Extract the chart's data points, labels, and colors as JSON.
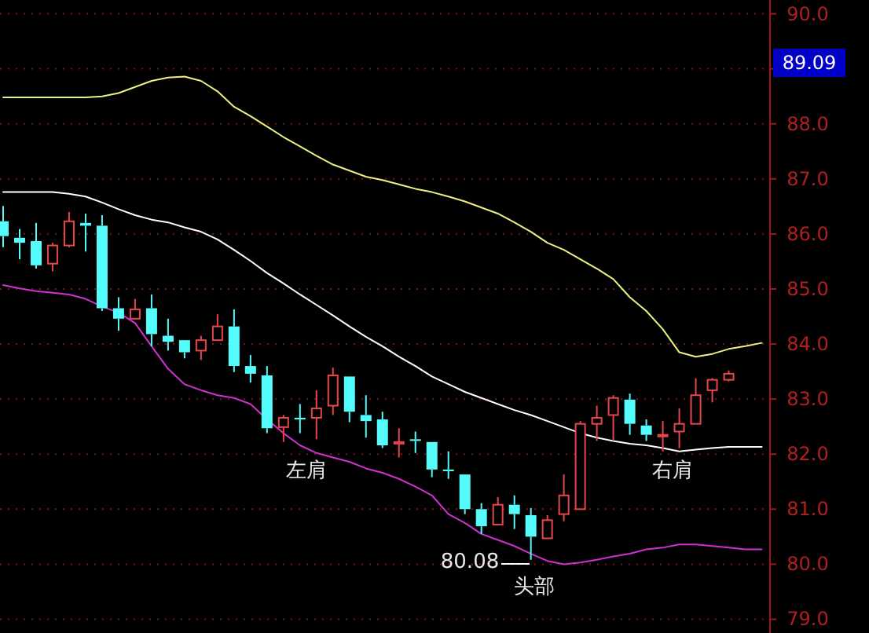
{
  "chart_data": {
    "type": "candlestick",
    "categories": [
      null,
      null,
      null,
      null,
      null,
      null,
      null,
      null,
      null,
      null,
      null,
      null,
      null,
      null,
      null,
      null,
      null,
      null,
      null,
      null,
      null,
      null,
      null,
      null,
      null,
      null,
      null,
      null,
      null,
      null,
      null,
      null,
      null,
      null,
      null,
      null,
      null,
      null,
      null,
      null,
      null,
      null,
      null,
      null,
      null,
      null,
      null
    ],
    "ohlc": [
      [
        86.23,
        86.51,
        85.76,
        85.96
      ],
      [
        85.93,
        86.09,
        85.54,
        85.84
      ],
      [
        85.87,
        86.2,
        85.37,
        85.43
      ],
      [
        85.46,
        85.84,
        85.32,
        85.79
      ],
      [
        85.79,
        86.4,
        85.76,
        86.23
      ],
      [
        86.2,
        86.37,
        85.68,
        86.15
      ],
      [
        86.15,
        86.34,
        84.6,
        84.65
      ],
      [
        84.65,
        84.85,
        84.24,
        84.46
      ],
      [
        84.46,
        84.82,
        84.46,
        84.63
      ],
      [
        84.65,
        84.9,
        83.96,
        84.18
      ],
      [
        84.15,
        84.46,
        83.88,
        84.04
      ],
      [
        84.07,
        84.07,
        83.74,
        83.85
      ],
      [
        83.88,
        84.15,
        83.71,
        84.07
      ],
      [
        84.07,
        84.54,
        84.07,
        84.32
      ],
      [
        84.32,
        84.63,
        83.49,
        83.6
      ],
      [
        83.6,
        83.8,
        83.3,
        83.46
      ],
      [
        83.43,
        83.6,
        82.38,
        82.47
      ],
      [
        82.49,
        82.71,
        82.22,
        82.66
      ],
      [
        82.66,
        82.91,
        82.38,
        82.63
      ],
      [
        82.66,
        83.16,
        82.27,
        82.83
      ],
      [
        82.88,
        83.57,
        82.71,
        83.43
      ],
      [
        83.41,
        83.41,
        82.58,
        82.77
      ],
      [
        82.71,
        83.07,
        82.3,
        82.6
      ],
      [
        82.63,
        82.77,
        82.11,
        82.16
      ],
      [
        82.19,
        82.47,
        81.94,
        82.22
      ],
      [
        82.27,
        82.41,
        82.02,
        82.24
      ],
      [
        82.22,
        82.22,
        81.58,
        81.72
      ],
      [
        81.72,
        82.05,
        81.55,
        81.69
      ],
      [
        81.63,
        81.63,
        80.91,
        81.0
      ],
      [
        81.0,
        81.11,
        80.55,
        80.69
      ],
      [
        80.72,
        81.22,
        80.72,
        81.08
      ],
      [
        81.08,
        81.25,
        80.64,
        80.91
      ],
      [
        80.89,
        81.02,
        80.08,
        80.5
      ],
      [
        80.47,
        80.89,
        80.47,
        80.8
      ],
      [
        80.91,
        81.63,
        80.78,
        81.25
      ],
      [
        81.0,
        82.6,
        81.0,
        82.55
      ],
      [
        82.55,
        82.88,
        82.24,
        82.66
      ],
      [
        82.71,
        83.07,
        82.24,
        83.02
      ],
      [
        82.99,
        83.1,
        82.35,
        82.55
      ],
      [
        82.52,
        82.63,
        82.24,
        82.35
      ],
      [
        82.33,
        82.6,
        82.05,
        82.35
      ],
      [
        82.41,
        82.83,
        82.11,
        82.55
      ],
      [
        82.55,
        83.38,
        82.55,
        83.07
      ],
      [
        83.16,
        83.38,
        82.94,
        83.35
      ],
      [
        83.35,
        83.52,
        83.32,
        83.46
      ],
      null,
      null
    ],
    "colors": [
      "#54fcfc",
      "#54fcfc",
      "#54fcfc",
      "#e8464a",
      "#e8464a",
      "#54fcfc",
      "#54fcfc",
      "#54fcfc",
      "#e8464a",
      "#54fcfc",
      "#54fcfc",
      "#54fcfc",
      "#e8464a",
      "#e8464a",
      "#54fcfc",
      "#54fcfc",
      "#54fcfc",
      "#e8464a",
      "#54fcfc",
      "#e8464a",
      "#e8464a",
      "#54fcfc",
      "#54fcfc",
      "#54fcfc",
      "#e8464a",
      "#54fcfc",
      "#54fcfc",
      "#54fcfc",
      "#54fcfc",
      "#54fcfc",
      "#e8464a",
      "#54fcfc",
      "#54fcfc",
      "#e8464a",
      "#e8464a",
      "#e8464a",
      "#e8464a",
      "#e8464a",
      "#54fcfc",
      "#54fcfc",
      "#e8464a",
      "#e8464a",
      "#e8464a",
      "#e8464a",
      "#e8464a",
      null,
      null
    ],
    "series": [
      {
        "type": "line",
        "color": "#f0f080",
        "values": [
          88.48,
          88.48,
          88.48,
          88.48,
          88.48,
          88.48,
          88.5,
          88.56,
          88.67,
          88.78,
          88.84,
          88.86,
          88.78,
          88.59,
          88.31,
          88.14,
          87.95,
          87.76,
          87.59,
          87.42,
          87.26,
          87.15,
          87.04,
          86.98,
          86.9,
          86.82,
          86.76,
          86.68,
          86.59,
          86.48,
          86.37,
          86.21,
          86.04,
          85.84,
          85.71,
          85.54,
          85.37,
          85.18,
          84.85,
          84.6,
          84.27,
          83.85,
          83.77,
          83.82,
          83.91,
          83.96,
          84.02
        ]
      },
      {
        "type": "line",
        "color": "#ffffff",
        "values": [
          86.76,
          86.76,
          86.76,
          86.76,
          86.73,
          86.68,
          86.57,
          86.45,
          86.34,
          86.26,
          86.21,
          86.12,
          86.04,
          85.9,
          85.71,
          85.51,
          85.29,
          85.1,
          84.9,
          84.71,
          84.52,
          84.32,
          84.13,
          83.96,
          83.77,
          83.6,
          83.41,
          83.27,
          83.13,
          83.02,
          82.91,
          82.8,
          82.71,
          82.6,
          82.49,
          82.38,
          82.3,
          82.24,
          82.19,
          82.16,
          82.11,
          82.05,
          82.08,
          82.11,
          82.13,
          82.13,
          82.13
        ]
      },
      {
        "type": "line",
        "color": "#d030d0",
        "values": [
          85.07,
          85.01,
          84.96,
          84.93,
          84.9,
          84.82,
          84.68,
          84.57,
          84.38,
          83.96,
          83.55,
          83.27,
          83.16,
          83.07,
          83.02,
          82.91,
          82.63,
          82.38,
          82.16,
          82.02,
          81.94,
          81.86,
          81.74,
          81.66,
          81.55,
          81.41,
          81.25,
          80.91,
          80.75,
          80.55,
          80.44,
          80.33,
          80.19,
          80.06,
          80.0,
          80.03,
          80.08,
          80.14,
          80.19,
          80.27,
          80.3,
          80.36,
          80.36,
          80.33,
          80.3,
          80.27,
          80.27
        ]
      }
    ],
    "ylim": [
      78.75,
      90.25
    ],
    "yticks": [
      {
        "value": 79,
        "label": "79.0"
      },
      {
        "value": 80,
        "label": "80.0"
      },
      {
        "value": 81,
        "label": "81.0"
      },
      {
        "value": 82,
        "label": "82.0"
      },
      {
        "value": 83,
        "label": "83.0"
      },
      {
        "value": 84,
        "label": "84.0"
      },
      {
        "value": 85,
        "label": "85.0"
      },
      {
        "value": 86,
        "label": "86.0"
      },
      {
        "value": 87,
        "label": "87.0"
      },
      {
        "value": 88,
        "label": "88.0"
      },
      {
        "value": 89,
        "label": null
      },
      {
        "value": 90,
        "label": "90.0"
      }
    ],
    "grid": "y",
    "tick_labels": "y",
    "annotations": [
      "左肩",
      "头部",
      "右肩",
      "80.08",
      "89.09"
    ]
  }
}
